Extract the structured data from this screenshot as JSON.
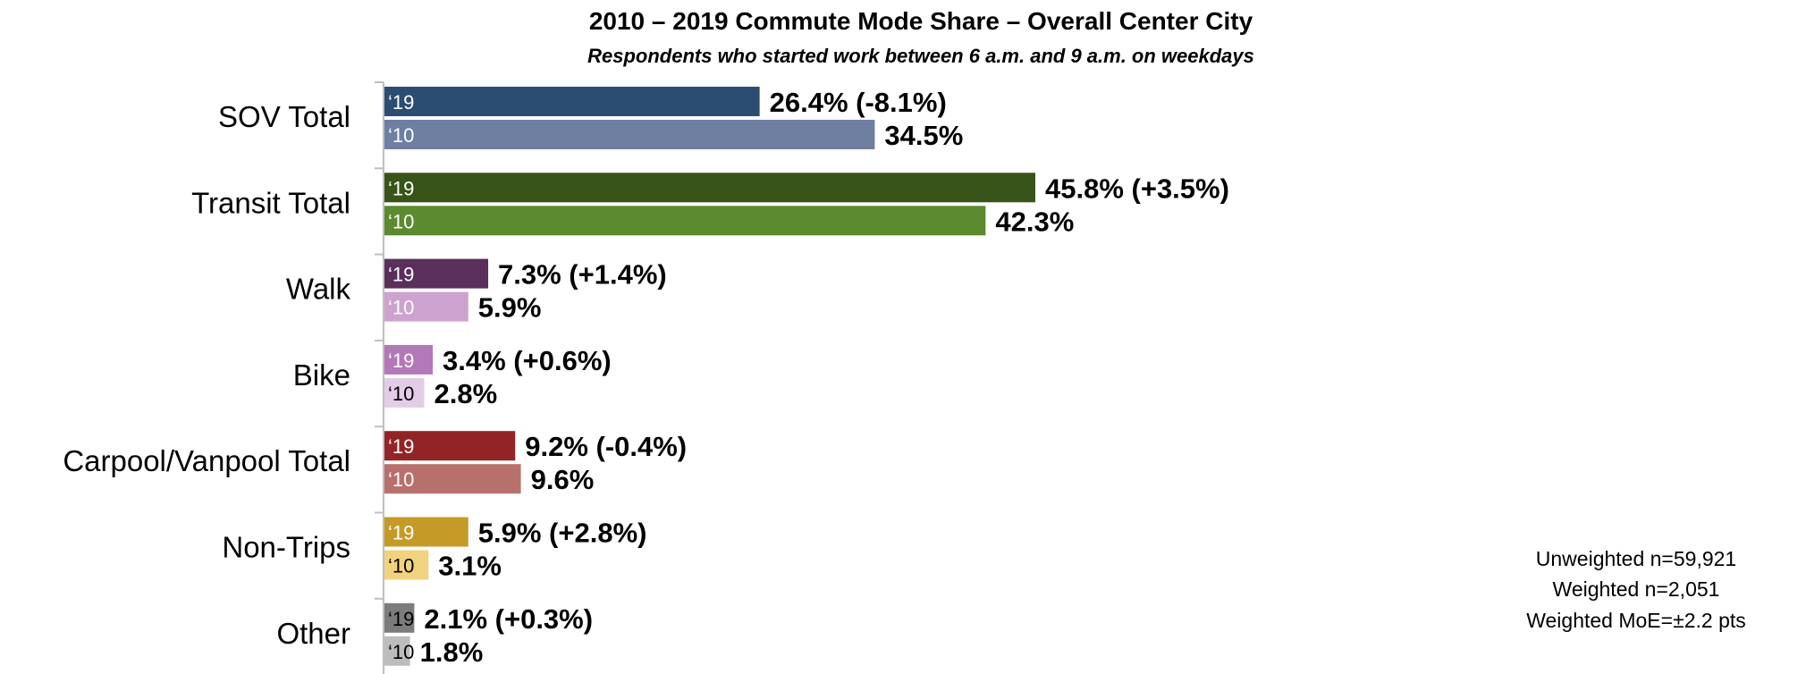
{
  "chart_data": {
    "type": "bar",
    "orientation": "horizontal",
    "title": "2010 – 2019 Commute Mode Share – Overall Center City",
    "subtitle": "Respondents who started work between 6 a.m. and 9 a.m. on weekdays",
    "xlim": [
      0,
      50
    ],
    "grid": false,
    "series_tags": [
      "‘19",
      "‘10"
    ],
    "categories": [
      {
        "name": "SOV Total",
        "v2019": 26.4,
        "v2010": 34.5,
        "label2019": "26.4% (-8.1%)",
        "label2010": "34.5%",
        "color2019": "#2b4d72",
        "color2010": "#6f7fa2",
        "tag2019Color": "#ffffff",
        "tag2010Color": "#ffffff"
      },
      {
        "name": "Transit Total",
        "v2019": 45.8,
        "v2010": 42.3,
        "label2019": "45.8% (+3.5%)",
        "label2010": "42.3%",
        "color2019": "#385419",
        "color2010": "#5c8a2e",
        "tag2019Color": "#ffffff",
        "tag2010Color": "#ffffff"
      },
      {
        "name": "Walk",
        "v2019": 7.3,
        "v2010": 5.9,
        "label2019": "7.3% (+1.4%)",
        "label2010": "5.9%",
        "color2019": "#5a2f5c",
        "color2010": "#cda2cf",
        "tag2019Color": "#ffffff",
        "tag2010Color": "#ffffff"
      },
      {
        "name": "Bike",
        "v2019": 3.4,
        "v2010": 2.8,
        "label2019": "3.4% (+0.6%)",
        "label2010": "2.8%",
        "color2019": "#b378b8",
        "color2010": "#e3cde6",
        "tag2019Color": "#ffffff",
        "tag2010Color": "#000000"
      },
      {
        "name": "Carpool/Vanpool Total",
        "v2019": 9.2,
        "v2010": 9.6,
        "label2019": "9.2% (-0.4%)",
        "label2010": "9.6%",
        "color2019": "#932426",
        "color2010": "#b8706c",
        "tag2019Color": "#ffffff",
        "tag2010Color": "#ffffff"
      },
      {
        "name": "Non-Trips",
        "v2019": 5.9,
        "v2010": 3.1,
        "label2019": "5.9% (+2.8%)",
        "label2010": "3.1%",
        "color2019": "#c59a27",
        "color2010": "#f1d37f",
        "tag2019Color": "#ffffff",
        "tag2010Color": "#000000"
      },
      {
        "name": "Other",
        "v2019": 2.1,
        "v2010": 1.8,
        "label2019": "2.1% (+0.3%)",
        "label2010": "1.8%",
        "color2019": "#7c7c7c",
        "color2010": "#bdbdbd",
        "tag2019Color": "#000000",
        "tag2010Color": "#000000"
      }
    ],
    "annotations": [
      "Unweighted n=59,921",
      "Weighted n=2,051",
      "Weighted MoE=±2.2 pts"
    ]
  }
}
